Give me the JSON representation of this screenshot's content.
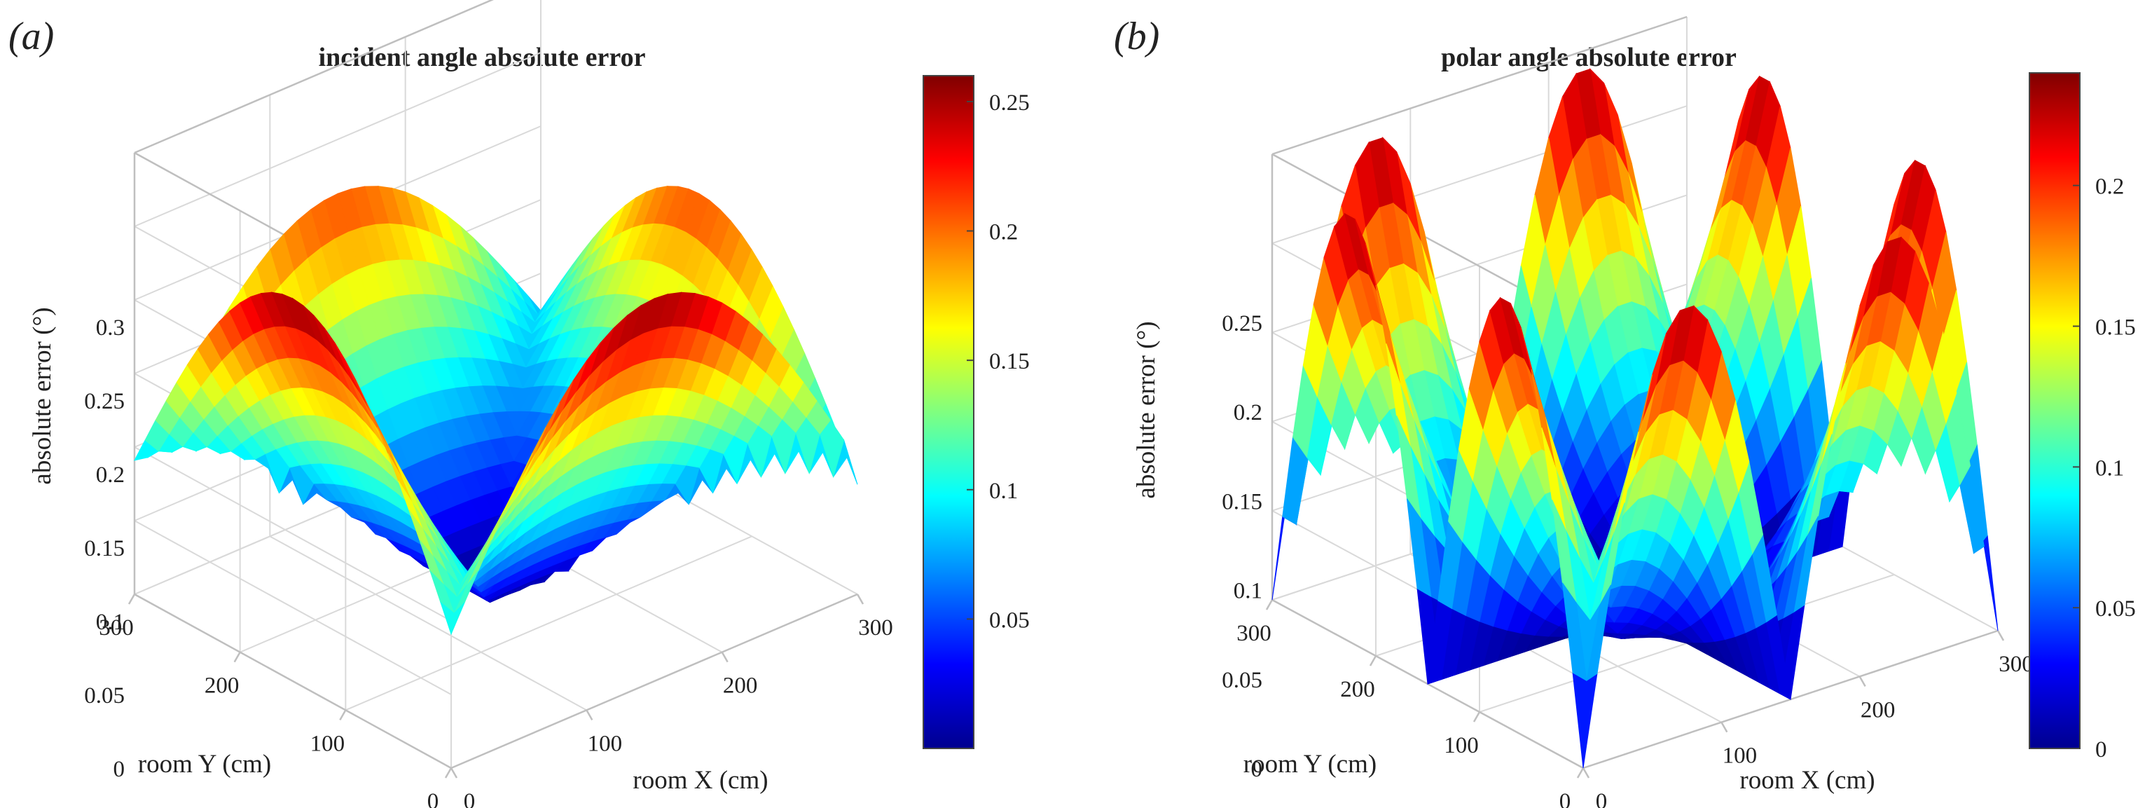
{
  "chart_data": [
    {
      "panel_label": "(a)",
      "type": "surface3d",
      "title": "incident angle absolute error",
      "xlabel": "room X (cm)",
      "ylabel": "room Y (cm)",
      "zlabel": "absolute error (°)",
      "x_range": [
        0,
        300
      ],
      "y_range": [
        0,
        300
      ],
      "zlim": [
        0,
        0.3
      ],
      "x_ticks": [
        0,
        100,
        200,
        300
      ],
      "y_ticks": [
        0,
        100,
        200,
        300
      ],
      "z_ticks": [
        0,
        0.05,
        0.1,
        0.15,
        0.2,
        0.25,
        0.3
      ],
      "x_tick_labels": [
        "0",
        "100",
        "200",
        "300"
      ],
      "y_tick_labels": [
        "0",
        "100",
        "200",
        "300"
      ],
      "z_tick_labels": [
        "0",
        "0.05",
        "0.1",
        "0.15",
        "0.2",
        "0.25",
        "0.3"
      ],
      "colormap": "jet",
      "colorbar_range": [
        0,
        0.26
      ],
      "colorbar_ticks": [
        0.05,
        0.1,
        0.15,
        0.2,
        0.25
      ],
      "colorbar_tick_labels": [
        "0.05",
        "0.1",
        "0.15",
        "0.2",
        "0.25"
      ],
      "grid": true,
      "peak_value": 0.26,
      "surface_description": "Four ridge-shaped humps along the room edges (max ≈0.26 at front edge midpoints, ≈0.21 at back edges), minimum ≈0 near the room centre, sharp spikes at the mid-lines x=150 and y=150"
    },
    {
      "panel_label": "(b)",
      "type": "surface3d",
      "title": "polar angle absolute error",
      "xlabel": "room X (cm)",
      "ylabel": "room Y (cm)",
      "zlabel": "absolute error (°)",
      "x_range": [
        0,
        300
      ],
      "y_range": [
        0,
        300
      ],
      "zlim": [
        0,
        0.25
      ],
      "x_ticks": [
        0,
        100,
        200,
        300
      ],
      "y_ticks": [
        0,
        100,
        200,
        300
      ],
      "z_ticks": [
        0,
        0.05,
        0.1,
        0.15,
        0.2,
        0.25
      ],
      "x_tick_labels": [
        "0",
        "100",
        "200",
        "300"
      ],
      "y_tick_labels": [
        "0",
        "100",
        "200",
        "300"
      ],
      "z_tick_labels": [
        "0",
        "0.05",
        "0.1",
        "0.15",
        "0.2",
        "0.25"
      ],
      "colormap": "jet",
      "colorbar_range": [
        0,
        0.24
      ],
      "colorbar_ticks": [
        0,
        0.05,
        0.1,
        0.15,
        0.2
      ],
      "colorbar_tick_labels": [
        "0",
        "0.05",
        "0.1",
        "0.15",
        "0.2"
      ],
      "grid": true,
      "peak_value": 0.24,
      "surface_description": "Eight arch-shaped ridges (two per room edge, split at x=150 and y=150) peaking ≈0.24, dropping to 0 at the mid-lines and toward the room centre"
    }
  ]
}
